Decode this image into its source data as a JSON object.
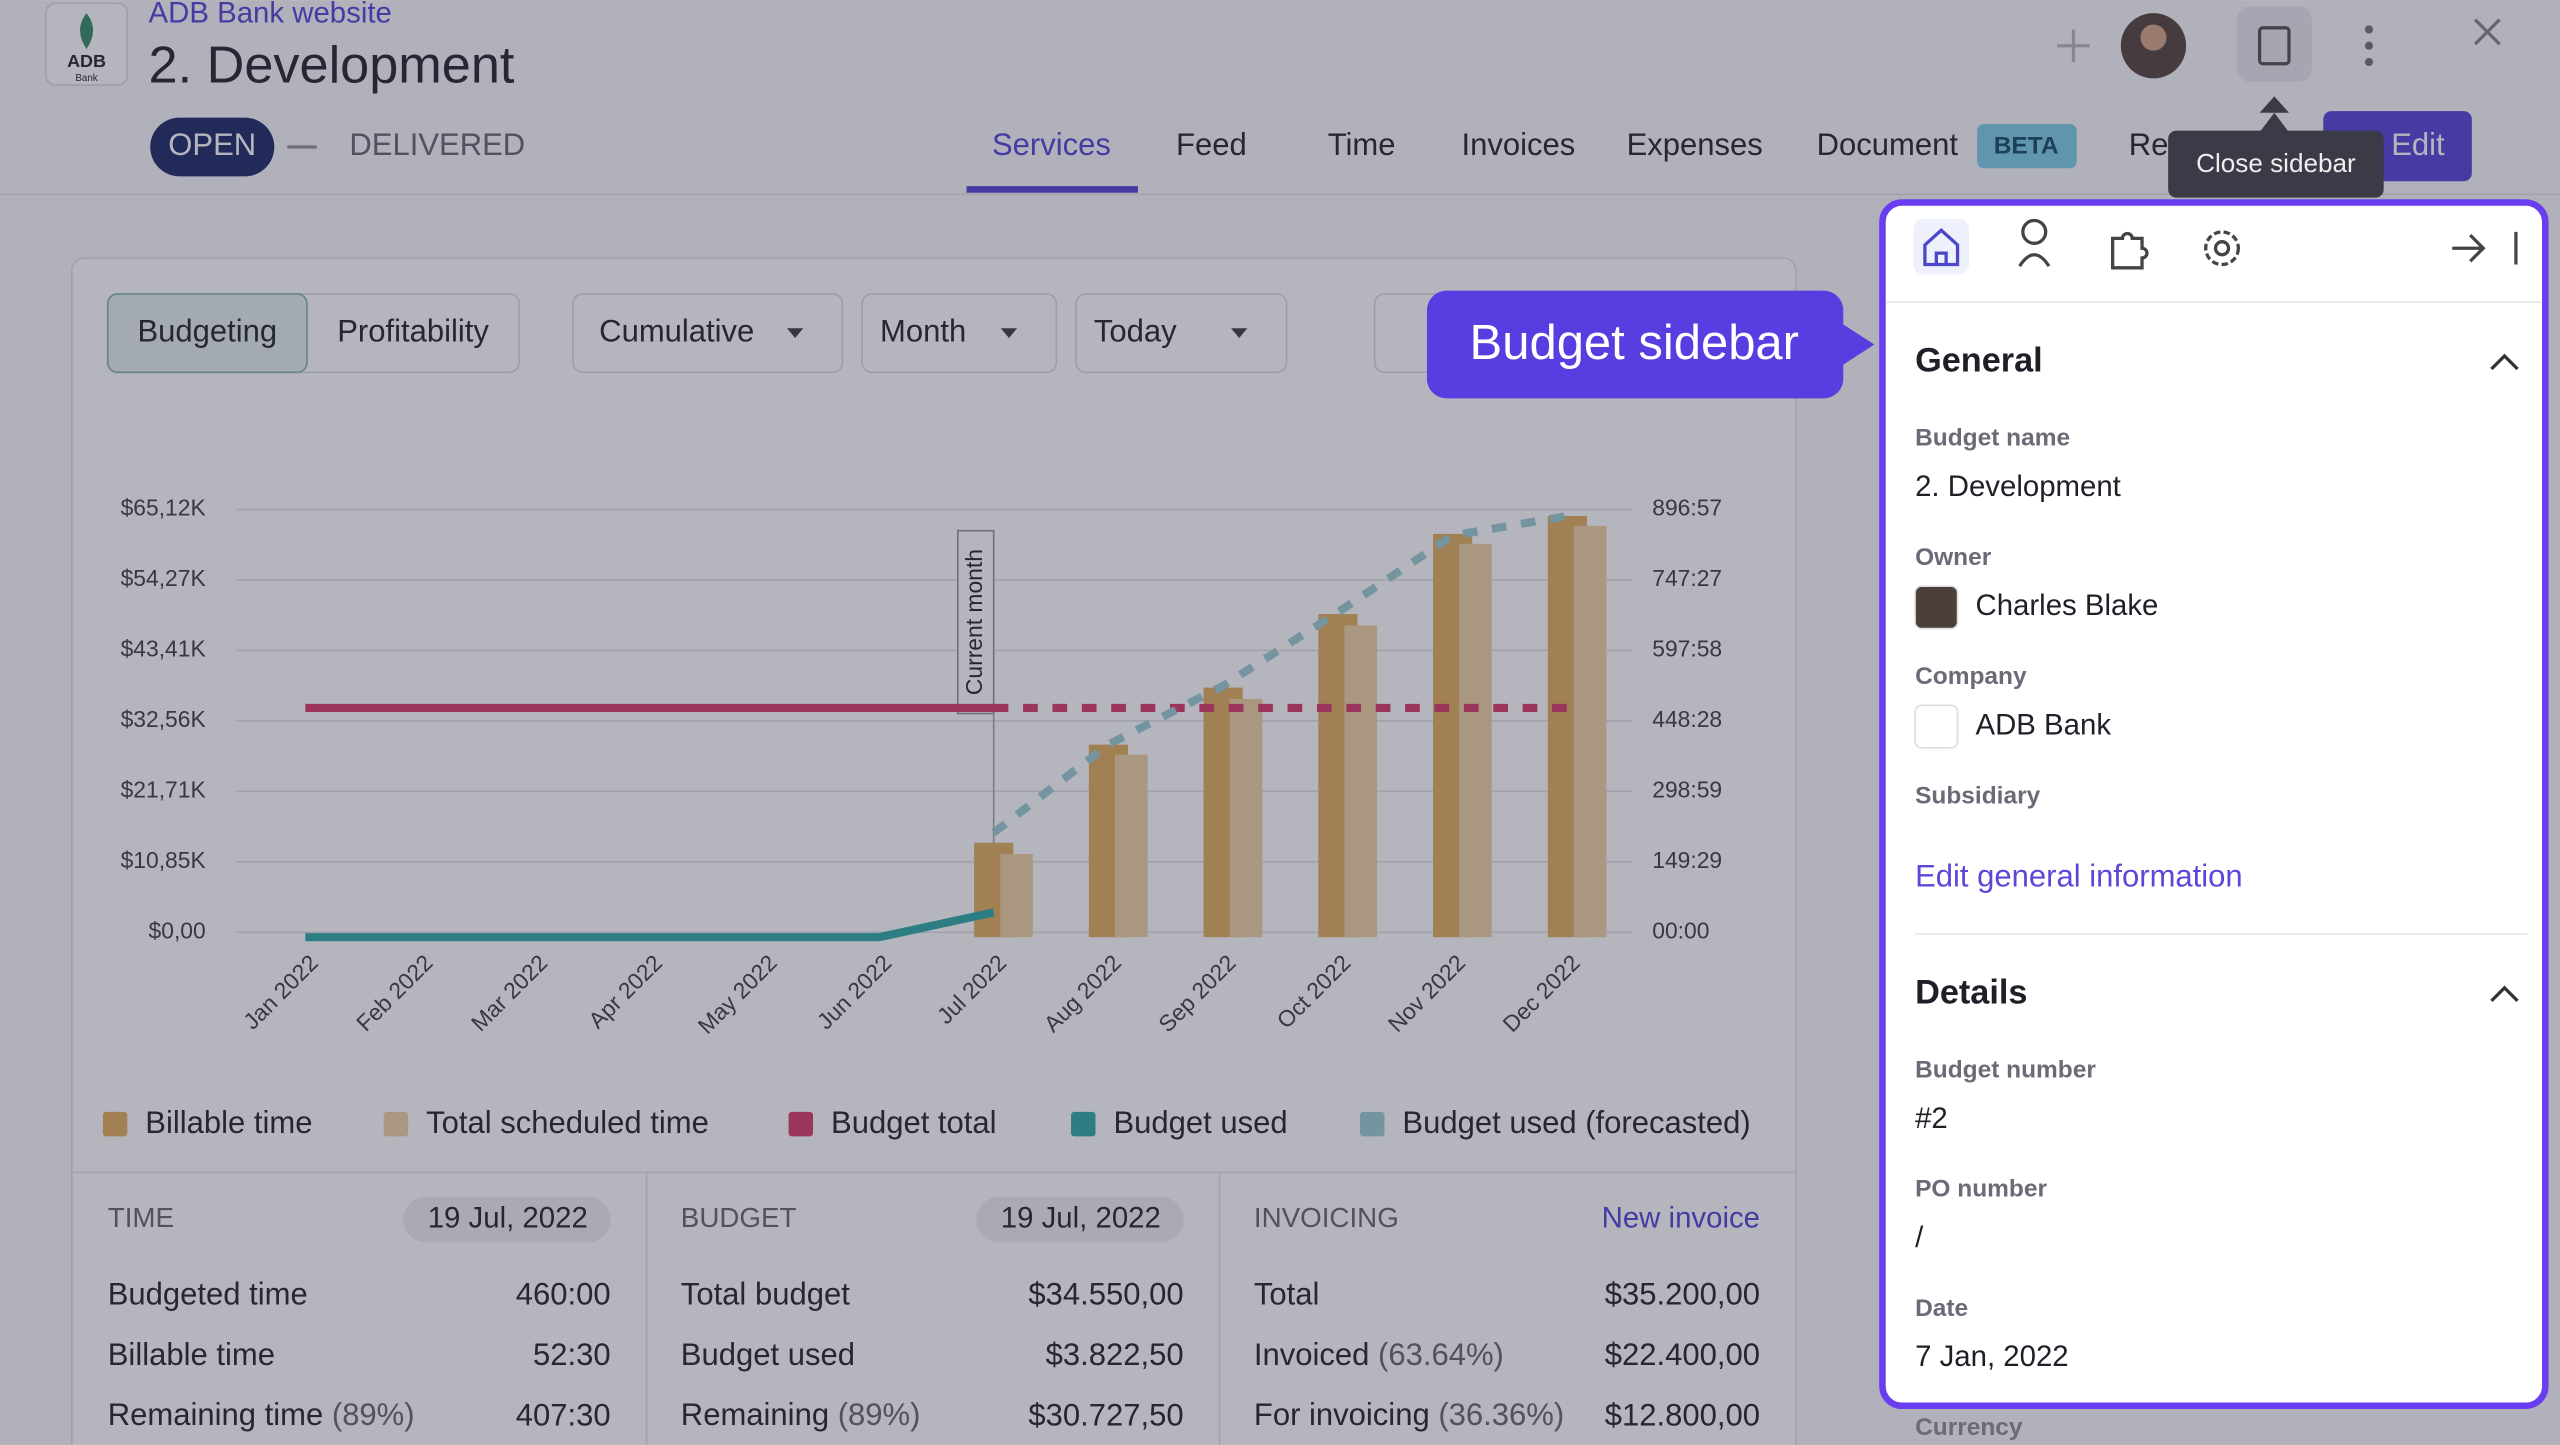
{
  "header": {
    "logo": "ADB",
    "logo_sub": "Bank",
    "project": "ADB Bank website",
    "title": "2. Development",
    "status": [
      "OPEN",
      "DELIVERED"
    ],
    "tabs": [
      "Services",
      "Feed",
      "Time",
      "Invoices",
      "Expenses",
      "Document",
      "Re"
    ],
    "badge": "BETA",
    "edit": "Edit",
    "tooltip": "Close sidebar"
  },
  "toolbar": {
    "views": [
      "Budgeting",
      "Profitability"
    ],
    "dropdowns": [
      "Cumulative",
      "Month",
      "Today"
    ]
  },
  "callout": "Budget sidebar",
  "chart_data": {
    "type": "bar",
    "categories": [
      "Jan 2022",
      "Feb 2022",
      "Mar 2022",
      "Apr 2022",
      "May 2022",
      "Jun 2022",
      "Jul 2022",
      "Aug 2022",
      "Sep 2022",
      "Oct 2022",
      "Nov 2022",
      "Dec 2022"
    ],
    "annotation": {
      "text": "Current month",
      "x": "Jul 2022"
    },
    "ylim": [
      0,
      65120
    ],
    "yticks": [
      {
        "value": 0,
        "label": "$0,00"
      },
      {
        "value": 10850,
        "label": "$10,85K"
      },
      {
        "value": 21710,
        "label": "$21,71K"
      },
      {
        "value": 32560,
        "label": "$32,56K"
      },
      {
        "value": 43410,
        "label": "$43,41K"
      },
      {
        "value": 54270,
        "label": "$54,27K"
      },
      {
        "value": 65120,
        "label": "$65,12K"
      }
    ],
    "y2lim": [
      0,
      896.95
    ],
    "y2ticks": [
      {
        "value": 0,
        "label": "00:00"
      },
      {
        "value": 149.483,
        "label": "149:29"
      },
      {
        "value": 298.983,
        "label": "298:59"
      },
      {
        "value": 448.467,
        "label": "448:28"
      },
      {
        "value": 597.967,
        "label": "597:58"
      },
      {
        "value": 747.45,
        "label": "747:27"
      },
      {
        "value": 896.95,
        "label": "896:57"
      }
    ],
    "grid": true,
    "series": [
      {
        "name": "Billable time",
        "color": "#e2b063",
        "kind": "bar",
        "axis": "y2",
        "values": [
          null,
          null,
          null,
          null,
          null,
          null,
          190,
          398,
          519,
          675,
          845,
          883
        ]
      },
      {
        "name": "Total scheduled time",
        "color": "#efd3a4",
        "kind": "bar",
        "axis": "y2",
        "values": [
          null,
          null,
          null,
          null,
          null,
          null,
          166,
          377,
          495,
          651,
          824,
          862
        ]
      },
      {
        "name": "Budget total",
        "color": "#d8416e",
        "kind": "line",
        "values": [
          34550,
          34550,
          34550,
          34550,
          34550,
          34550,
          34550,
          34550,
          34550,
          34550,
          34550,
          34550
        ]
      },
      {
        "name": "Budget used",
        "color": "#35aea7",
        "kind": "line",
        "values": [
          0,
          0,
          0,
          0,
          0,
          0,
          3822.5,
          null,
          null,
          null,
          null,
          null
        ]
      },
      {
        "name": "Budget used (forecasted)",
        "color": "#9fd0d3",
        "kind": "dashed",
        "values": [
          null,
          null,
          null,
          null,
          null,
          null,
          15340,
          28920,
          37960,
          49280,
          61100,
          64110
        ]
      }
    ]
  },
  "summary": [
    {
      "title": "TIME",
      "date": "19 Jul, 2022",
      "rows": [
        [
          "Budgeted time",
          "",
          "460:00"
        ],
        [
          "Billable time",
          "",
          "52:30"
        ],
        [
          "Remaining time",
          "(89%)",
          "407:30"
        ]
      ]
    },
    {
      "title": "BUDGET",
      "date": "19 Jul, 2022",
      "rows": [
        [
          "Total budget",
          "",
          "$34.550,00"
        ],
        [
          "Budget used",
          "",
          "$3.822,50"
        ],
        [
          "Remaining",
          "(89%)",
          "$30.727,50"
        ]
      ]
    },
    {
      "title": "INVOICING",
      "date": "New invoice",
      "rows": [
        [
          "Total",
          "",
          "$35.200,00"
        ],
        [
          "Invoiced",
          "(63.64%)",
          "$22.400,00"
        ],
        [
          "For invoicing",
          "(36.36%)",
          "$12.800,00"
        ]
      ]
    }
  ],
  "sidebar": {
    "general": {
      "title": "General",
      "fields": [
        [
          "Budget name",
          "2. Development"
        ],
        [
          "Owner",
          "Charles Blake"
        ],
        [
          "Company",
          "ADB Bank"
        ],
        [
          "Subsidiary",
          ""
        ]
      ],
      "link": "Edit general information"
    },
    "details": {
      "title": "Details",
      "fields": [
        [
          "Budget number",
          "#2"
        ],
        [
          "PO number",
          "/"
        ],
        [
          "Date",
          "7 Jan, 2022"
        ],
        [
          "Currency",
          ""
        ]
      ]
    }
  }
}
